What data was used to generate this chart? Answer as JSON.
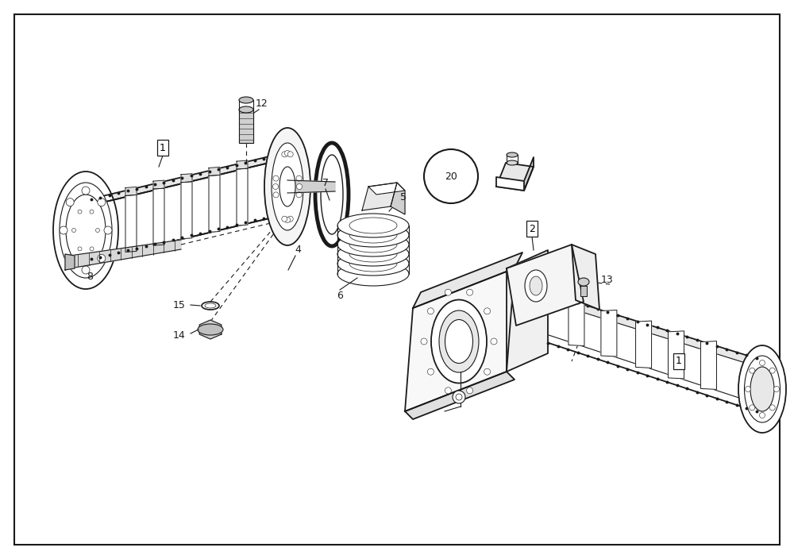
{
  "bg_color": "#ffffff",
  "line_color": "#1a1a1a",
  "fig_width": 10.0,
  "fig_height": 7.04,
  "dpi": 100
}
